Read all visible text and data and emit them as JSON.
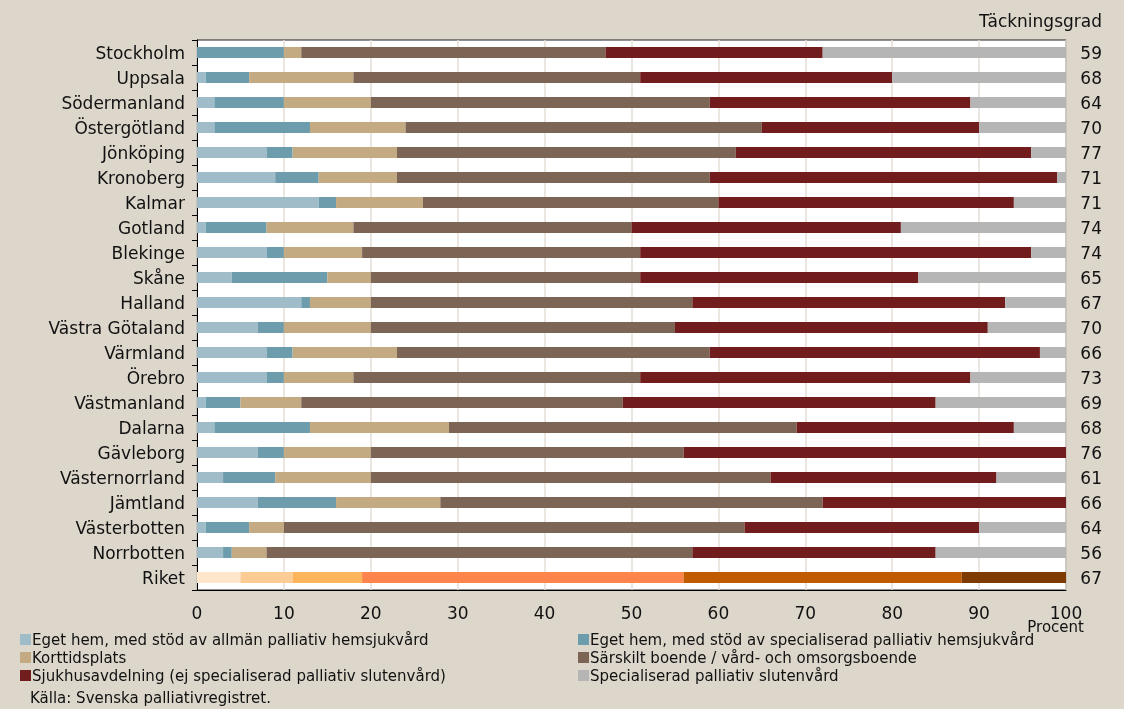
{
  "chart_data": {
    "type": "bar",
    "orientation": "horizontal",
    "stacked": true,
    "xlabel": "Procent",
    "categories": [
      "Stockholm",
      "Uppsala",
      "Södermanland",
      "Östergötland",
      "Jönköping",
      "Kronoberg",
      "Kalmar",
      "Gotland",
      "Blekinge",
      "Skåne",
      "Halland",
      "Västra Götaland",
      "Värmland",
      "Örebro",
      "Västmanland",
      "Dalarna",
      "Gävleborg",
      "Västernorrland",
      "Jämtland",
      "Västerbotten",
      "Norrbotten",
      "Riket"
    ],
    "series": [
      {
        "name": "Eget hem, med stöd av allmän palliativ hemsjukvård",
        "color": "#a0bcc8",
        "values": [
          0,
          1,
          2,
          2,
          8,
          9,
          14,
          1,
          8,
          4,
          12,
          7,
          8,
          8,
          1,
          2,
          7,
          3,
          7,
          1,
          3,
          5
        ],
        "colors": [
          "#a0bcc8",
          "#a0bcc8",
          "#a0bcc8",
          "#a0bcc8",
          "#a0bcc8",
          "#a0bcc8",
          "#a0bcc8",
          "#a0bcc8",
          "#a0bcc8",
          "#a0bcc8",
          "#a0bcc8",
          "#a0bcc8",
          "#a0bcc8",
          "#a0bcc8",
          "#a0bcc8",
          "#a0bcc8",
          "#a0bcc8",
          "#a0bcc8",
          "#a0bcc8",
          "#a0bcc8",
          "#a0bcc8",
          "#fde6ca"
        ]
      },
      {
        "name": "Eget hem, med stöd av specialiserad palliativ hemsjukvård",
        "color": "#6d9cad",
        "values": [
          10,
          5,
          8,
          11,
          3,
          5,
          2,
          7,
          2,
          11,
          1,
          3,
          3,
          2,
          4,
          11,
          3,
          6,
          9,
          5,
          1,
          6
        ],
        "colors": [
          "#6d9cad",
          "#6d9cad",
          "#6d9cad",
          "#6d9cad",
          "#6d9cad",
          "#6d9cad",
          "#6d9cad",
          "#6d9cad",
          "#6d9cad",
          "#6d9cad",
          "#6d9cad",
          "#6d9cad",
          "#6d9cad",
          "#6d9cad",
          "#6d9cad",
          "#6d9cad",
          "#6d9cad",
          "#6d9cad",
          "#6d9cad",
          "#6d9cad",
          "#6d9cad",
          "#fdcb94"
        ]
      },
      {
        "name": "Korttidsplats",
        "color": "#c4aa82",
        "values": [
          2,
          12,
          10,
          11,
          12,
          9,
          10,
          10,
          9,
          5,
          7,
          10,
          12,
          8,
          7,
          16,
          10,
          11,
          12,
          4,
          4,
          8
        ],
        "colors": [
          "#c4aa82",
          "#c4aa82",
          "#c4aa82",
          "#c4aa82",
          "#c4aa82",
          "#c4aa82",
          "#c4aa82",
          "#c4aa82",
          "#c4aa82",
          "#c4aa82",
          "#c4aa82",
          "#c4aa82",
          "#c4aa82",
          "#c4aa82",
          "#c4aa82",
          "#c4aa82",
          "#c4aa82",
          "#c4aa82",
          "#c4aa82",
          "#c4aa82",
          "#c4aa82",
          "#fdb55c"
        ]
      },
      {
        "name": "Särskilt boende / vård- och omsorgsboende",
        "color": "#7d6555",
        "values": [
          35,
          33,
          39,
          41,
          39,
          36,
          34,
          32,
          32,
          31,
          37,
          35,
          36,
          33,
          37,
          40,
          36,
          46,
          44,
          53,
          49,
          37
        ],
        "colors": [
          "#7d6555",
          "#7d6555",
          "#7d6555",
          "#7d6555",
          "#7d6555",
          "#7d6555",
          "#7d6555",
          "#7d6555",
          "#7d6555",
          "#7d6555",
          "#7d6555",
          "#7d6555",
          "#7d6555",
          "#7d6555",
          "#7d6555",
          "#7d6555",
          "#7d6555",
          "#7d6555",
          "#7d6555",
          "#7d6555",
          "#7d6555",
          "#fd844a"
        ]
      },
      {
        "name": "Sjukhusavdelning (ej specialiserad palliativ slutenvård)",
        "color": "#721d1d",
        "values": [
          25,
          29,
          30,
          25,
          34,
          40,
          34,
          31,
          45,
          32,
          36,
          36,
          38,
          38,
          36,
          25,
          44,
          26,
          28,
          27,
          28,
          32
        ],
        "colors": [
          "#721d1d",
          "#721d1d",
          "#721d1d",
          "#721d1d",
          "#721d1d",
          "#721d1d",
          "#721d1d",
          "#721d1d",
          "#721d1d",
          "#721d1d",
          "#721d1d",
          "#721d1d",
          "#721d1d",
          "#721d1d",
          "#721d1d",
          "#721d1d",
          "#721d1d",
          "#721d1d",
          "#721d1d",
          "#721d1d",
          "#721d1d",
          "#c05b00"
        ]
      },
      {
        "name": "Specialiserad palliativ slutenvård",
        "color": "#b5b5b5",
        "values": [
          28,
          20,
          11,
          10,
          4,
          1,
          6,
          19,
          4,
          17,
          7,
          9,
          3,
          11,
          15,
          6,
          0,
          8,
          0,
          10,
          15,
          12
        ],
        "colors": [
          "#b5b5b5",
          "#b5b5b5",
          "#b5b5b5",
          "#b5b5b5",
          "#b5b5b5",
          "#b5b5b5",
          "#b5b5b5",
          "#b5b5b5",
          "#b5b5b5",
          "#b5b5b5",
          "#b5b5b5",
          "#b5b5b5",
          "#b5b5b5",
          "#b5b5b5",
          "#b5b5b5",
          "#b5b5b5",
          "#b5b5b5",
          "#b5b5b5",
          "#b5b5b5",
          "#b5b5b5",
          "#b5b5b5",
          "#7f3a00"
        ]
      }
    ],
    "xlim": [
      0,
      100
    ],
    "xticks": [
      0,
      10,
      20,
      30,
      40,
      50,
      60,
      70,
      80,
      90,
      100
    ],
    "grid": "x",
    "legend": "bottom",
    "annotations": [
      "Täckningsgrad",
      "59",
      "68",
      "64",
      "70",
      "77",
      "71",
      "71",
      "74",
      "74",
      "65",
      "67",
      "70",
      "66",
      "73",
      "69",
      "68",
      "76",
      "61",
      "66",
      "64",
      "56",
      "67",
      "Källa: Svenska palliativregistret."
    ]
  }
}
